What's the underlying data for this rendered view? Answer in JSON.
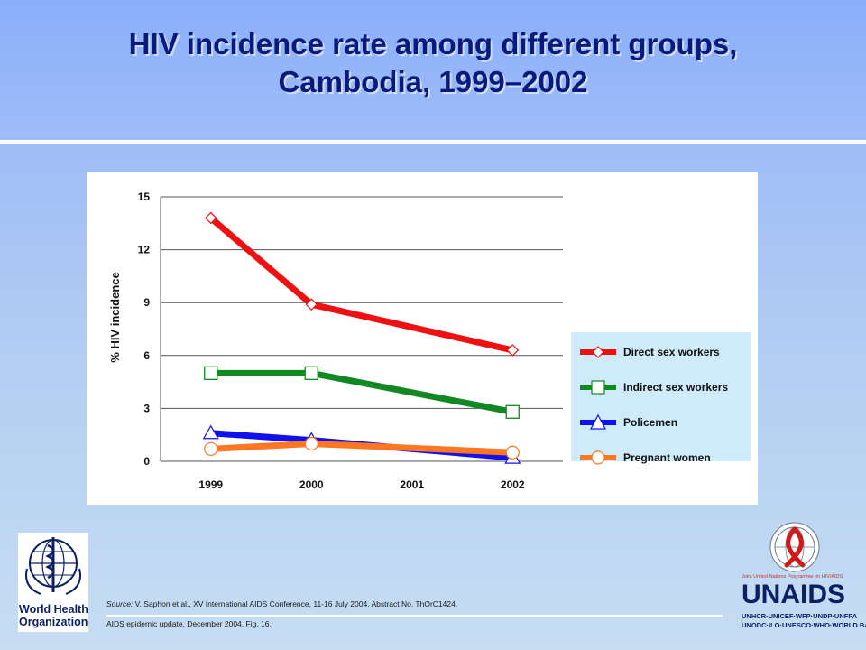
{
  "slide": {
    "title_line1": "HIV incidence rate among different groups,",
    "title_line2": "Cambodia, 1999–2002",
    "source_label": "Source:",
    "source_text": "V. Saphon et al., XV International AIDS Conference, 11-16 July 2004. Abstract No. ThOrC1424.",
    "footnote": "AIDS epidemic update, December 2004.  Fig. 16.",
    "who_logo": {
      "line1": "World Health",
      "line2": "Organization"
    },
    "unaids_logo": {
      "tagline": "Joint United Nations Programme on HIV/AIDS",
      "name": "UNAIDS",
      "sponsors_line1": "UNHCR·UNICEF·WFP·UNDP·UNFPA",
      "sponsors_line2": "UNODC·ILO·UNESCO·WHO·WORLD BANK"
    }
  },
  "chart_data": {
    "type": "line",
    "title": "HIV incidence rate among different groups, Cambodia, 1999–2002",
    "xlabel": "",
    "ylabel": "% HIV incidence",
    "categories": [
      "1999",
      "2000",
      "2001",
      "2002"
    ],
    "ylim": [
      0,
      15
    ],
    "yticks": [
      "0",
      "3",
      "6",
      "9",
      "12",
      "15"
    ],
    "grid": true,
    "legend_position": "right",
    "series": [
      {
        "name": "Direct sex workers",
        "color": "#ee1111",
        "marker": "diamond",
        "x": [
          "1999",
          "2000",
          "2002"
        ],
        "values": [
          13.8,
          8.9,
          6.3
        ]
      },
      {
        "name": "Indirect sex workers",
        "color": "#118822",
        "marker": "square",
        "x": [
          "1999",
          "2000",
          "2002"
        ],
        "values": [
          5.0,
          5.0,
          2.8
        ]
      },
      {
        "name": "Policemen",
        "color": "#1111ee",
        "marker": "triangle",
        "x": [
          "1999",
          "2000",
          "2002"
        ],
        "values": [
          1.6,
          1.2,
          0.2
        ]
      },
      {
        "name": "Pregnant women",
        "color": "#ff7722",
        "marker": "circle",
        "x": [
          "1999",
          "2000",
          "2002"
        ],
        "values": [
          0.7,
          1.0,
          0.5
        ]
      }
    ]
  }
}
